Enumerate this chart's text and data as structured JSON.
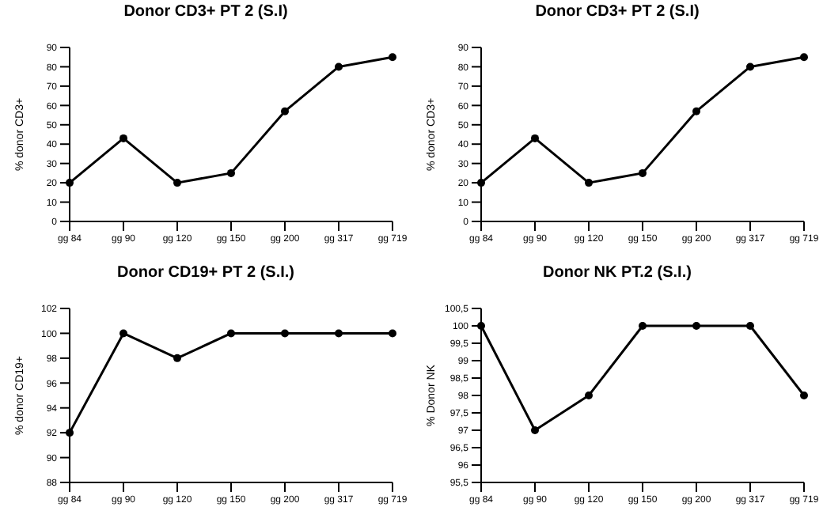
{
  "chart_data": [
    {
      "type": "line",
      "title": "Donor CD3+ PT 2 (S.I)",
      "ylabel": "% donor CD3+",
      "categories": [
        "gg 84",
        "gg 90",
        "gg 120",
        "gg 150",
        "gg 200",
        "gg 317",
        "gg 719"
      ],
      "series": [
        {
          "color": "#000000",
          "values": [
            20,
            43,
            20,
            25,
            57,
            80,
            85
          ]
        }
      ],
      "ylim": [
        0,
        90
      ],
      "yticks": [
        0,
        10,
        20,
        30,
        40,
        50,
        60,
        70,
        80,
        90
      ],
      "grid": false,
      "legend": false,
      "marker": "circle",
      "line_style": "solid"
    },
    {
      "type": "line",
      "title": "Donor CD3+ PT 2 (S.I)",
      "ylabel": "% donor CD3+",
      "categories": [
        "gg 84",
        "gg 90",
        "gg 120",
        "gg 150",
        "gg 200",
        "gg 317",
        "gg 719"
      ],
      "series": [
        {
          "color": "#000000",
          "values": [
            20,
            43,
            20,
            25,
            57,
            80,
            85
          ]
        }
      ],
      "ylim": [
        0,
        90
      ],
      "yticks": [
        0,
        10,
        20,
        30,
        40,
        50,
        60,
        70,
        80,
        90
      ],
      "grid": false,
      "legend": false,
      "marker": "circle",
      "line_style": "solid"
    },
    {
      "type": "line",
      "title": "Donor CD19+ PT 2 (S.I.)",
      "ylabel": "% donor CD19+",
      "categories": [
        "gg 84",
        "gg 90",
        "gg 120",
        "gg 150",
        "gg 200",
        "gg 317",
        "gg 719"
      ],
      "series": [
        {
          "color": "#000000",
          "values": [
            92,
            100,
            98,
            100,
            100,
            100,
            100
          ]
        }
      ],
      "ylim": [
        88,
        102
      ],
      "yticks": [
        88,
        90,
        92,
        94,
        96,
        98,
        100,
        102
      ],
      "grid": false,
      "legend": false,
      "marker": "circle",
      "line_style": "solid"
    },
    {
      "type": "line",
      "title": "Donor NK PT.2 (S.I.)",
      "ylabel": "% Donor NK",
      "categories": [
        "gg 84",
        "gg 90",
        "gg 120",
        "gg 150",
        "gg 200",
        "gg 317",
        "gg 719"
      ],
      "series": [
        {
          "color": "#000000",
          "values": [
            100,
            97,
            98,
            100,
            100,
            100,
            98
          ]
        }
      ],
      "ylim": [
        95.5,
        100.5
      ],
      "yticks": [
        {
          "value": 95.5,
          "label": "95,5"
        },
        96,
        {
          "value": 96.5,
          "label": "96,5"
        },
        97,
        {
          "value": 97.5,
          "label": "97,5"
        },
        98,
        {
          "value": 98.5,
          "label": "98,5"
        },
        99,
        {
          "value": 99.5,
          "label": "99,5"
        },
        100,
        {
          "value": 100.5,
          "label": "100,5"
        }
      ],
      "grid": false,
      "legend": false,
      "marker": "circle",
      "line_style": "solid"
    }
  ]
}
